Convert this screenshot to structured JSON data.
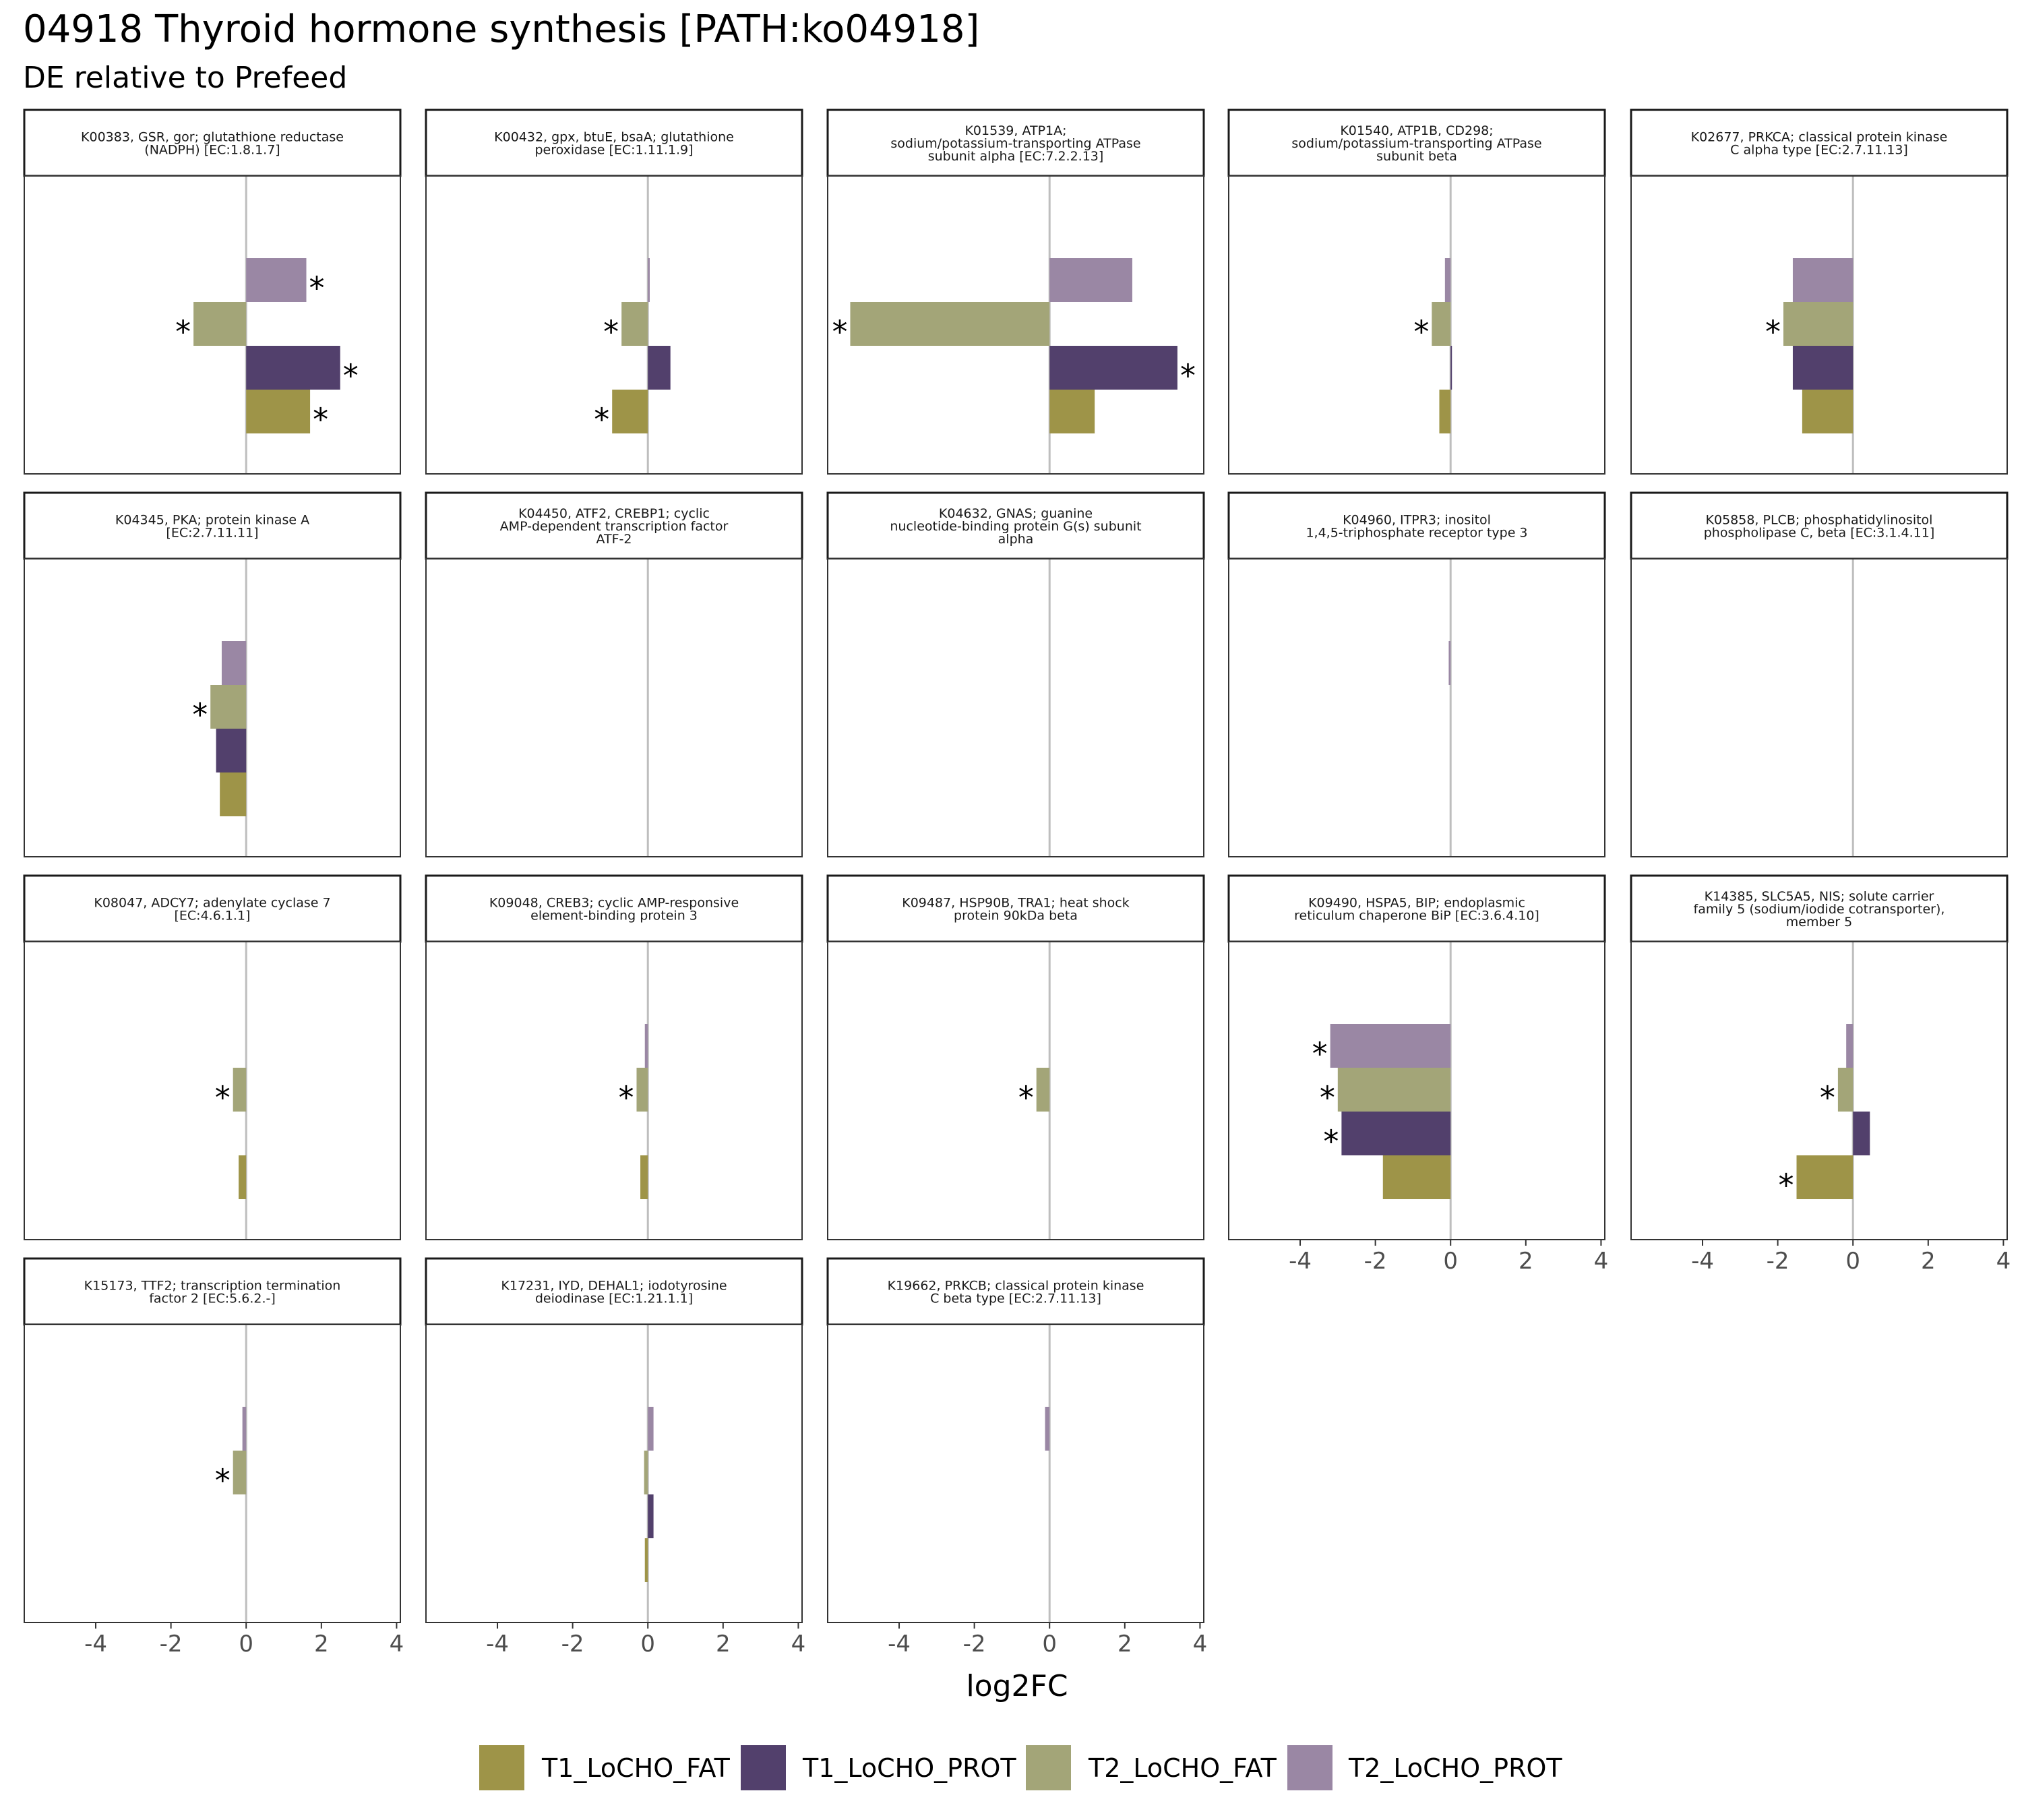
{
  "title": "04918 Thyroid hormone synthesis [PATH:ko04918]",
  "subtitle": "DE relative to Prefeed",
  "xlabel": "log2FC",
  "chart_data": {
    "type": "bar",
    "orientation": "horizontal",
    "title": "04918 Thyroid hormone synthesis [PATH:ko04918]",
    "subtitle": "DE relative to Prefeed",
    "xlabel": "log2FC",
    "xlim": [
      -5.9,
      4.1
    ],
    "xticks": [
      -4,
      -2,
      0,
      2,
      4
    ],
    "xtick_labels": [
      "-4",
      "-2",
      "0",
      "2",
      "4"
    ],
    "grid": false,
    "legend_position": "bottom",
    "series": [
      {
        "name": "T1_LoCHO_FAT",
        "color": "#9e9448"
      },
      {
        "name": "T1_LoCHO_PROT",
        "color": "#52406c"
      },
      {
        "name": "T2_LoCHO_FAT",
        "color": "#a3a578"
      },
      {
        "name": "T2_LoCHO_PROT",
        "color": "#9a87a4"
      }
    ],
    "significance_marker": "*",
    "panels": [
      {
        "title": [
          "K00383, GSR, gor; glutathione reductase",
          "(NADPH) [EC:1.8.1.7]"
        ],
        "values": [
          1.7,
          2.5,
          -1.4,
          1.6
        ],
        "significant": [
          true,
          true,
          true,
          true
        ]
      },
      {
        "title": [
          "K00432, gpx, btuE, bsaA; glutathione",
          "peroxidase [EC:1.11.1.9]"
        ],
        "values": [
          -0.95,
          0.6,
          -0.7,
          0.05
        ],
        "significant": [
          true,
          false,
          true,
          false
        ]
      },
      {
        "title": [
          "K01539, ATP1A;",
          "sodium/potassium-transporting ATPase",
          "subunit alpha [EC:7.2.2.13]"
        ],
        "values": [
          1.2,
          3.4,
          -5.3,
          2.2
        ],
        "significant": [
          false,
          true,
          true,
          false
        ]
      },
      {
        "title": [
          "K01540, ATP1B, CD298;",
          "sodium/potassium-transporting ATPase",
          "subunit beta"
        ],
        "values": [
          -0.3,
          0.0,
          -0.5,
          -0.15
        ],
        "significant": [
          false,
          false,
          true,
          false
        ]
      },
      {
        "title": [
          "K02677, PRKCA; classical protein kinase",
          "C alpha type [EC:2.7.11.13]"
        ],
        "values": [
          -1.35,
          -1.6,
          -1.85,
          -1.6
        ],
        "significant": [
          false,
          false,
          true,
          false
        ]
      },
      {
        "title": [
          "K04345, PKA; protein kinase A",
          "[EC:2.7.11.11]"
        ],
        "values": [
          -0.7,
          -0.8,
          -0.95,
          -0.65
        ],
        "significant": [
          false,
          false,
          true,
          false
        ]
      },
      {
        "title": [
          "K04450, ATF2, CREBP1; cyclic",
          "AMP-dependent transcription factor",
          "ATF-2"
        ],
        "values": [
          null,
          null,
          null,
          null
        ],
        "significant": [
          false,
          false,
          false,
          false
        ]
      },
      {
        "title": [
          "K04632, GNAS; guanine",
          "nucleotide-binding protein G(s) subunit",
          "alpha"
        ],
        "values": [
          null,
          null,
          null,
          null
        ],
        "significant": [
          false,
          false,
          false,
          false
        ]
      },
      {
        "title": [
          "K04960, ITPR3; inositol",
          "1,4,5-triphosphate receptor type 3"
        ],
        "values": [
          null,
          null,
          null,
          -0.05
        ],
        "significant": [
          false,
          false,
          false,
          false
        ]
      },
      {
        "title": [
          "K05858, PLCB; phosphatidylinositol",
          "phospholipase C, beta [EC:3.1.4.11]"
        ],
        "values": [
          null,
          null,
          null,
          null
        ],
        "significant": [
          false,
          false,
          false,
          false
        ]
      },
      {
        "title": [
          "K08047, ADCY7; adenylate cyclase 7",
          "[EC:4.6.1.1]"
        ],
        "values": [
          -0.2,
          null,
          -0.35,
          null
        ],
        "significant": [
          false,
          false,
          true,
          false
        ]
      },
      {
        "title": [
          "K09048, CREB3; cyclic AMP-responsive",
          "element-binding protein 3"
        ],
        "values": [
          -0.2,
          null,
          -0.3,
          -0.08
        ],
        "significant": [
          false,
          false,
          true,
          false
        ]
      },
      {
        "title": [
          "K09487, HSP90B, TRA1; heat shock",
          "protein 90kDa beta"
        ],
        "values": [
          null,
          null,
          -0.35,
          null
        ],
        "significant": [
          false,
          false,
          true,
          false
        ]
      },
      {
        "title": [
          "K09490, HSPA5, BIP; endoplasmic",
          "reticulum chaperone BiP [EC:3.6.4.10]"
        ],
        "values": [
          -1.8,
          -2.9,
          -3.0,
          -3.2
        ],
        "significant": [
          false,
          true,
          true,
          true
        ]
      },
      {
        "title": [
          "K14385, SLC5A5, NIS; solute carrier",
          "family 5 (sodium/iodide cotransporter),",
          "member 5"
        ],
        "values": [
          -1.5,
          0.45,
          -0.4,
          -0.18
        ],
        "significant": [
          true,
          false,
          true,
          false
        ]
      },
      {
        "title": [
          "K15173, TTF2; transcription termination",
          "factor 2 [EC:5.6.2.-]"
        ],
        "values": [
          null,
          null,
          -0.35,
          -0.1
        ],
        "significant": [
          false,
          false,
          true,
          false
        ]
      },
      {
        "title": [
          "K17231, IYD, DEHAL1; iodotyrosine",
          "deiodinase [EC:1.21.1.1]"
        ],
        "values": [
          -0.08,
          0.15,
          -0.1,
          0.15
        ],
        "significant": [
          false,
          false,
          false,
          false
        ]
      },
      {
        "title": [
          "K19662, PRKCB; classical protein kinase",
          "C beta type [EC:2.7.11.13]"
        ],
        "values": [
          null,
          null,
          null,
          -0.12
        ],
        "significant": [
          false,
          false,
          false,
          false
        ]
      }
    ]
  }
}
